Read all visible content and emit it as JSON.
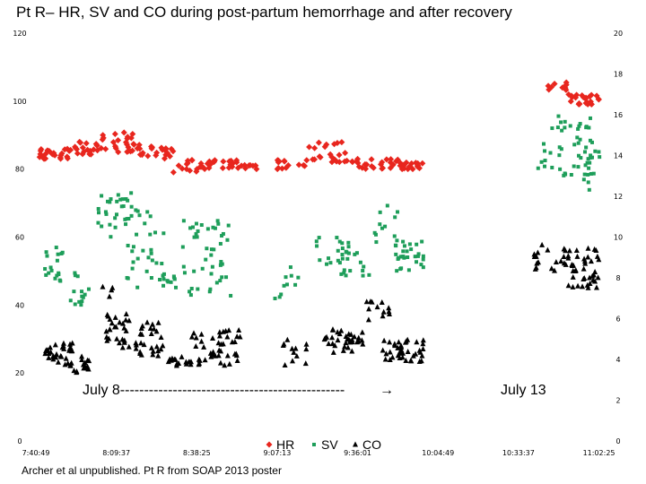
{
  "title": "Pt R– HR, SV and CO during post-partum hemorrhage and after recovery",
  "footer": "Archer et al unpublished. Pt R from SOAP 2013 poster",
  "chart_data": {
    "type": "scatter",
    "title": "Pt R– HR, SV and CO during post-partum hemorrhage and after recovery",
    "xlabel": "",
    "ylabel_left": "",
    "ylabel_right": "",
    "x_ticks": [
      "7:40:49",
      "8:09:37",
      "8:38:25",
      "9:07:13",
      "9:36:01",
      "10:04:49",
      "10:33:37",
      "11:02:25"
    ],
    "ylim_left": [
      0,
      120
    ],
    "y_ticks_left": [
      "0",
      "20",
      "40",
      "60",
      "80",
      "100",
      "120"
    ],
    "ylim_right": [
      0,
      20
    ],
    "y_ticks_right": [
      "0",
      "2",
      "4",
      "6",
      "8",
      "10",
      "12",
      "14",
      "16",
      "18",
      "20"
    ],
    "legend": [
      "HR",
      "SV",
      "CO"
    ],
    "annotations": [
      {
        "text": "July 8-----------------------------------------------",
        "arrow": "→"
      },
      {
        "text": "July 13"
      }
    ],
    "series": [
      {
        "name": "HR",
        "axis": "left",
        "color": "#e8261e",
        "marker": "diamond",
        "clusters": [
          {
            "x": [
              7.7,
              7.9
            ],
            "y": [
              83,
              86
            ],
            "n": 25
          },
          {
            "x": [
              7.9,
              8.05
            ],
            "y": [
              84,
              88
            ],
            "n": 20
          },
          {
            "x": [
              8.05,
              8.3
            ],
            "y": [
              85,
              91
            ],
            "n": 28
          },
          {
            "x": [
              8.3,
              8.5
            ],
            "y": [
              83,
              87
            ],
            "n": 20
          },
          {
            "x": [
              8.5,
              8.8
            ],
            "y": [
              79,
              83
            ],
            "n": 28
          },
          {
            "x": [
              8.8,
              9.0
            ],
            "y": [
              80,
              83
            ],
            "n": 18
          },
          {
            "x": [
              9.1,
              9.3
            ],
            "y": [
              80,
              83
            ],
            "n": 15
          },
          {
            "x": [
              9.3,
              9.55
            ],
            "y": [
              82,
              88
            ],
            "n": 22
          },
          {
            "x": [
              9.55,
              9.85
            ],
            "y": [
              80,
              83
            ],
            "n": 25
          },
          {
            "x": [
              9.85,
              10.0
            ],
            "y": [
              80,
              82
            ],
            "n": 20
          },
          {
            "x": [
              10.7,
              10.85
            ],
            "y": [
              103,
              106
            ],
            "n": 10
          },
          {
            "x": [
              10.85,
              11.05
            ],
            "y": [
              99,
              102
            ],
            "n": 25
          }
        ]
      },
      {
        "name": "SV",
        "axis": "left",
        "color": "#1e9e5a",
        "marker": "square",
        "clusters": [
          {
            "x": [
              7.72,
              7.85
            ],
            "y": [
              45,
              57
            ],
            "n": 18
          },
          {
            "x": [
              7.85,
              8.0
            ],
            "y": [
              40,
              50
            ],
            "n": 14
          },
          {
            "x": [
              8.05,
              8.3
            ],
            "y": [
              60,
              73
            ],
            "n": 30
          },
          {
            "x": [
              8.2,
              8.45
            ],
            "y": [
              45,
              68
            ],
            "n": 28
          },
          {
            "x": [
              8.4,
              8.55
            ],
            "y": [
              45,
              50
            ],
            "n": 12
          },
          {
            "x": [
              8.55,
              8.85
            ],
            "y": [
              42,
              65
            ],
            "n": 45
          },
          {
            "x": [
              9.1,
              9.25
            ],
            "y": [
              40,
              52
            ],
            "n": 10
          },
          {
            "x": [
              9.35,
              9.55
            ],
            "y": [
              52,
              60
            ],
            "n": 20
          },
          {
            "x": [
              9.5,
              9.7
            ],
            "y": [
              48,
              56
            ],
            "n": 14
          },
          {
            "x": [
              9.7,
              9.85
            ],
            "y": [
              58,
              70
            ],
            "n": 12
          },
          {
            "x": [
              9.8,
              10.0
            ],
            "y": [
              50,
              59
            ],
            "n": 30
          },
          {
            "x": [
              10.62,
              10.75
            ],
            "y": [
              80,
              88
            ],
            "n": 6
          },
          {
            "x": [
              10.75,
              10.9
            ],
            "y": [
              78,
              96
            ],
            "n": 20
          },
          {
            "x": [
              10.9,
              11.0
            ],
            "y": [
              78,
              95
            ],
            "n": 25
          },
          {
            "x": [
              10.95,
              11.05
            ],
            "y": [
              72,
              88
            ],
            "n": 10
          }
        ]
      },
      {
        "name": "CO",
        "axis": "left",
        "color": "#000000",
        "marker": "triangle",
        "clusters": [
          {
            "x": [
              7.72,
              7.9
            ],
            "y": [
              22,
              29
            ],
            "n": 35
          },
          {
            "x": [
              7.9,
              8.0
            ],
            "y": [
              20,
              25
            ],
            "n": 15
          },
          {
            "x": [
              8.0,
              8.15
            ],
            "y": [
              40,
              46
            ],
            "n": 4
          },
          {
            "x": [
              8.1,
              8.3
            ],
            "y": [
              27,
              38
            ],
            "n": 30
          },
          {
            "x": [
              8.3,
              8.45
            ],
            "y": [
              25,
              36
            ],
            "n": 25
          },
          {
            "x": [
              8.45,
              8.6
            ],
            "y": [
              22,
              25
            ],
            "n": 15
          },
          {
            "x": [
              8.6,
              8.9
            ],
            "y": [
              22,
              33
            ],
            "n": 45
          },
          {
            "x": [
              9.15,
              9.3
            ],
            "y": [
              22,
              30
            ],
            "n": 12
          },
          {
            "x": [
              9.4,
              9.65
            ],
            "y": [
              26,
              33
            ],
            "n": 35
          },
          {
            "x": [
              9.65,
              9.8
            ],
            "y": [
              35,
              42
            ],
            "n": 12
          },
          {
            "x": [
              9.75,
              10.0
            ],
            "y": [
              23,
              30
            ],
            "n": 40
          },
          {
            "x": [
              10.65,
              10.85
            ],
            "y": [
              50,
              58
            ],
            "n": 20
          },
          {
            "x": [
              10.85,
              11.05
            ],
            "y": [
              45,
              57
            ],
            "n": 40
          }
        ]
      }
    ]
  }
}
